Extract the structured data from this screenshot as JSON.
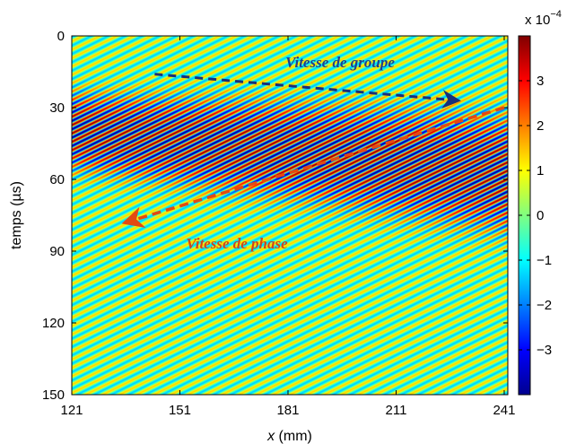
{
  "chart_data": {
    "type": "heatmap",
    "title": "",
    "x": {
      "label_var": "x",
      "label_unit": " (mm)",
      "range": [
        121,
        242
      ],
      "ticks": [
        121,
        151,
        181,
        211,
        241
      ],
      "tick_labels": [
        "121",
        "151",
        "181",
        "211",
        "241"
      ]
    },
    "y": {
      "label": "temps (µs)",
      "range": [
        0,
        150
      ],
      "direction": "down",
      "ticks": [
        0,
        30,
        60,
        90,
        120,
        150
      ],
      "tick_labels": [
        "0",
        "30",
        "60",
        "90",
        "120",
        "150"
      ]
    },
    "colorbar": {
      "exponent_label": "x 10",
      "exponent_power": "−4",
      "range": [
        -4,
        4
      ],
      "ticks": [
        3,
        2,
        1,
        0,
        -1,
        -2,
        -3
      ],
      "tick_labels": [
        "3",
        "2",
        "1",
        "0",
        "−1",
        "−2",
        "−3"
      ],
      "colormap": "jet"
    },
    "field": {
      "description_of_pattern": "diagonal wave stripes with high-amplitude packet",
      "stripe_slope_time_per_mm": -0.74,
      "stripe_period_time": 3.5,
      "background_amplitude": 0.35,
      "packet": [
        {
          "x": 121,
          "t_center": 40,
          "half_width": 16
        },
        {
          "x": 181,
          "t_center": 48,
          "half_width": 20
        },
        {
          "x": 242,
          "t_center": 58,
          "half_width": 24
        }
      ]
    },
    "annotations": [
      {
        "text": "Vitesse de groupe",
        "color": "#1f3f8f",
        "arrow_color": "#1a2f7a",
        "arrow_from": [
          144,
          16
        ],
        "arrow_to": [
          228,
          27
        ]
      },
      {
        "text": "Vitesse de phase",
        "color": "#d2451b",
        "arrow_color": "#e34a12",
        "arrow_from": [
          241,
          30
        ],
        "arrow_to": [
          136,
          78
        ]
      }
    ]
  }
}
